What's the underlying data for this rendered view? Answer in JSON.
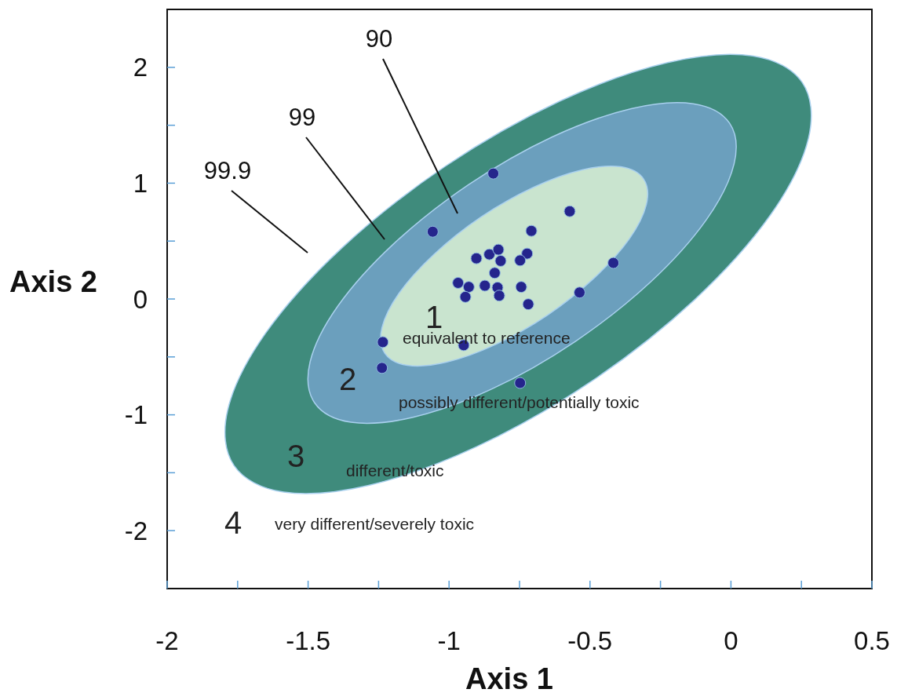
{
  "chart_data": {
    "type": "scatter",
    "xlabel": "Axis 1",
    "ylabel": "Axis 2",
    "xlim": [
      -2,
      0.5
    ],
    "ylim": [
      -2.5,
      2.5
    ],
    "xticks": [
      -2,
      {
        "value": -1.75,
        "label": null
      },
      -1.5,
      {
        "value": -1.25,
        "label": null
      },
      -1,
      {
        "value": -0.75,
        "label": null
      },
      -0.5,
      {
        "value": -0.25,
        "label": null
      },
      0,
      {
        "value": 0.25,
        "label": null
      },
      0.5
    ],
    "yticks": [
      -2,
      {
        "value": -1.5,
        "label": null
      },
      -1,
      {
        "value": -0.5,
        "label": null
      },
      0,
      {
        "value": 0.5,
        "label": null
      },
      1,
      {
        "value": 1.5,
        "label": null
      },
      2
    ],
    "grid": false,
    "series": [
      {
        "type": "area",
        "color": "#3f8b7c",
        "x": [
          0.253,
          0.275,
          0.141,
          -0.13,
          -0.496,
          -0.902,
          -1.285,
          -1.587,
          -1.763,
          -1.785,
          -1.651,
          -1.38,
          -1.014,
          -0.608,
          -0.225,
          0.077
        ],
        "values": [
          1.869,
          1.387,
          0.728,
          -0.009,
          -0.713,
          -1.275,
          -1.609,
          -1.667,
          -1.437,
          -0.955,
          -0.296,
          0.441,
          1.145,
          1.707,
          2.041,
          2.099
        ]
      },
      {
        "type": "area",
        "color": "#6b9fbd",
        "x": [
          -0.005,
          0.011,
          -0.087,
          -0.285,
          -0.552,
          -0.848,
          -1.128,
          -1.348,
          -1.477,
          -1.493,
          -1.395,
          -1.197,
          -0.93,
          -0.634,
          -0.354,
          -0.134
        ],
        "values": [
          1.518,
          1.166,
          0.685,
          0.147,
          -0.366,
          -0.777,
          -1.021,
          -1.064,
          -0.896,
          -0.544,
          -0.063,
          0.475,
          0.988,
          1.399,
          1.643,
          1.686
        ]
      },
      {
        "type": "area",
        "color": "#c9e4cf",
        "x": [
          -0.31,
          -0.3,
          -0.361,
          -0.485,
          -0.651,
          -0.836,
          -1.01,
          -1.148,
          -1.228,
          -1.238,
          -1.177,
          -1.053,
          -0.887,
          -0.702,
          -0.528,
          -0.39
        ],
        "values": [
          1.036,
          0.817,
          0.517,
          0.182,
          -0.139,
          -0.394,
          -0.546,
          -0.573,
          -0.468,
          -0.249,
          0.051,
          0.386,
          0.707,
          0.962,
          1.114,
          1.141
        ]
      },
      {
        "color": "#25258c",
        "marker": "circle",
        "x": [
          -0.843,
          -0.572,
          -1.058,
          -0.708,
          -0.903,
          -0.857,
          -0.825,
          -0.817,
          -0.723,
          -0.748,
          -0.417,
          -0.838,
          -0.968,
          -0.93,
          -0.873,
          -0.828,
          -0.744,
          -0.537,
          -0.942,
          -0.822,
          -0.719,
          -1.235,
          -0.948,
          -1.238,
          -0.748
        ],
        "values": [
          1.083,
          0.757,
          0.581,
          0.588,
          0.351,
          0.385,
          0.426,
          0.329,
          0.392,
          0.333,
          0.311,
          0.225,
          0.139,
          0.104,
          0.115,
          0.099,
          0.104,
          0.056,
          0.018,
          0.029,
          -0.045,
          -0.372,
          -0.399,
          -0.595,
          -0.725
        ]
      }
    ],
    "annotations": [
      "90",
      "99",
      "99.9",
      "1",
      "equivalent to reference",
      "2",
      "possibly different/potentially toxic",
      "3",
      "different/toxic",
      "4",
      "very different/severely toxic"
    ]
  }
}
